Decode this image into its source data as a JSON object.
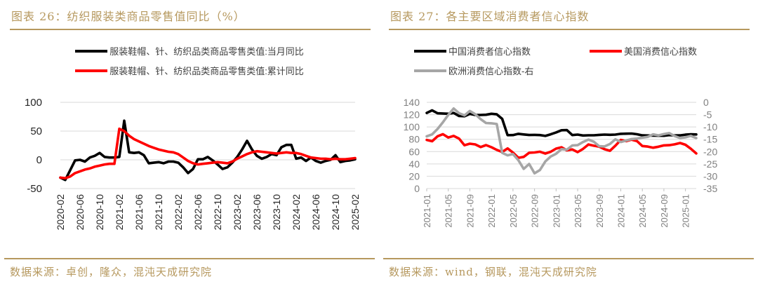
{
  "colors": {
    "accent_gold": "#B6985E",
    "grid": "#D9D9D9",
    "tick": "#BFBFBF",
    "axis_label_dark": "#262626",
    "axis_label_gray": "#808080",
    "legend_text": "#404040",
    "line_black": "#000000",
    "line_red": "#FF0000",
    "line_gray": "#A6A6A6"
  },
  "chart_data": [
    {
      "type": "line",
      "title": "图表 26：纺织服装类商品零售值同比（%）",
      "source": "数据来源：卓创，隆众，混沌天成研究院",
      "legend_position": "top",
      "grid": true,
      "ylim": [
        -50,
        100
      ],
      "yticks": [
        100,
        50,
        0,
        -50
      ],
      "x_tick_labels": [
        "2020-02",
        "2020-06",
        "2020-10",
        "2021-02",
        "2021-06",
        "2021-10",
        "2022-02",
        "2022-06",
        "2022-10",
        "2023-02",
        "2023-06",
        "2023-10",
        "2024-02",
        "2024-06",
        "2024-10",
        "2025-02"
      ],
      "x": [
        "2020-02",
        "2020-03",
        "2020-04",
        "2020-05",
        "2020-06",
        "2020-07",
        "2020-08",
        "2020-09",
        "2020-10",
        "2020-11",
        "2020-12",
        "2021-01",
        "2021-02",
        "2021-03",
        "2021-04",
        "2021-05",
        "2021-06",
        "2021-07",
        "2021-08",
        "2021-09",
        "2021-10",
        "2021-11",
        "2021-12",
        "2022-01",
        "2022-02",
        "2022-03",
        "2022-04",
        "2022-05",
        "2022-06",
        "2022-07",
        "2022-08",
        "2022-09",
        "2022-10",
        "2022-11",
        "2022-12",
        "2023-01",
        "2023-02",
        "2023-03",
        "2023-04",
        "2023-05",
        "2023-06",
        "2023-07",
        "2023-08",
        "2023-09",
        "2023-10",
        "2023-11",
        "2023-12",
        "2024-01",
        "2024-02",
        "2024-03",
        "2024-04",
        "2024-05",
        "2024-06",
        "2024-07",
        "2024-08",
        "2024-09",
        "2024-10",
        "2024-11",
        "2024-12",
        "2025-01",
        "2025-02"
      ],
      "series": [
        {
          "name": "服装鞋帽、针、纺织品类商品零售类值:当月同比",
          "color": "#000000",
          "axis": "left",
          "values": [
            -31,
            -35,
            -18,
            -1,
            0,
            -3,
            4,
            7,
            12,
            5,
            4,
            4,
            5,
            68,
            13,
            12,
            13,
            8,
            -6,
            -5,
            -4,
            -6,
            -3,
            -3,
            -5,
            -13,
            -23,
            -16,
            1,
            1,
            5,
            -1,
            -8,
            -16,
            -13,
            -5,
            5,
            18,
            33,
            18,
            7,
            2,
            5,
            10,
            8,
            22,
            26,
            26,
            2,
            4,
            -2,
            4,
            -2,
            -5,
            -2,
            0,
            8,
            -4,
            -2,
            -1,
            1
          ]
        },
        {
          "name": "服装鞋帽、针、纺织品类商品零售类值:累计同比",
          "color": "#FF0000",
          "axis": "left",
          "values": [
            -31,
            -32,
            -29,
            -23,
            -20,
            -17,
            -15,
            -12,
            -10,
            -8,
            -7,
            -7,
            54,
            50,
            42,
            36,
            32,
            28,
            24,
            21,
            18,
            16,
            14,
            13,
            10,
            4,
            -2,
            -6,
            -8,
            -7,
            -6,
            -5,
            -4,
            -5,
            -6,
            -3,
            2,
            6,
            10,
            13,
            15,
            14,
            13,
            12,
            11,
            12,
            13,
            12,
            12,
            10,
            7,
            4,
            3,
            2,
            2,
            1,
            2,
            1,
            1,
            2,
            3
          ]
        }
      ]
    },
    {
      "type": "line",
      "title": "图表 27：各主要区域消费者信心指数",
      "source": "数据来源：wind，钢联，混沌天成研究院",
      "legend_position": "top",
      "grid": true,
      "ylim_left": [
        0,
        140
      ],
      "yticks_left": [
        140,
        120,
        100,
        80,
        60,
        40,
        20,
        0
      ],
      "ylim_right": [
        -35,
        0
      ],
      "yticks_right": [
        0,
        -5,
        -10,
        -15,
        -20,
        -25,
        -30,
        -35
      ],
      "x_tick_labels": [
        "2021-01",
        "2021-05",
        "2021-09",
        "2022-01",
        "2022-05",
        "2022-09",
        "2023-01",
        "2023-05",
        "2023-09",
        "2024-01",
        "2024-05",
        "2024-09",
        "2025-01"
      ],
      "x": [
        "2021-01",
        "2021-02",
        "2021-03",
        "2021-04",
        "2021-05",
        "2021-06",
        "2021-07",
        "2021-08",
        "2021-09",
        "2021-10",
        "2021-11",
        "2021-12",
        "2022-01",
        "2022-02",
        "2022-03",
        "2022-04",
        "2022-05",
        "2022-06",
        "2022-07",
        "2022-08",
        "2022-09",
        "2022-10",
        "2022-11",
        "2022-12",
        "2023-01",
        "2023-02",
        "2023-03",
        "2023-04",
        "2023-05",
        "2023-06",
        "2023-07",
        "2023-08",
        "2023-09",
        "2023-10",
        "2023-11",
        "2023-12",
        "2024-01",
        "2024-02",
        "2024-03",
        "2024-04",
        "2024-05",
        "2024-06",
        "2024-07",
        "2024-08",
        "2024-09",
        "2024-10",
        "2024-11",
        "2024-12",
        "2025-01",
        "2025-02",
        "2025-03"
      ],
      "series": [
        {
          "name": "中国消费者信心指数",
          "color": "#000000",
          "axis": "left",
          "values": [
            122.8,
            127,
            122.2,
            121.9,
            121.5,
            122.8,
            117.8,
            117.5,
            121.2,
            119.5,
            119.5,
            119.8,
            121.5,
            120.5,
            113.2,
            86.7,
            86.8,
            88.9,
            87.9,
            87,
            87.2,
            86.9,
            85.5,
            88.1,
            91.2,
            94.7,
            94.9,
            86.9,
            87.6,
            86.2,
            86.5,
            86.5,
            87.2,
            87.6,
            87.3,
            87.6,
            88.9,
            89.1,
            89.4,
            88.2,
            86.4,
            86.2,
            86,
            85.8,
            85.7,
            86.9,
            86.3,
            86.4,
            87.5,
            88.1,
            87.9
          ]
        },
        {
          "name": "美国消费信心指数",
          "color": "#FF0000",
          "axis": "left",
          "values": [
            79,
            76.8,
            84.9,
            88.3,
            82.9,
            85.5,
            81.2,
            70.3,
            72.8,
            71.7,
            67.4,
            70.6,
            67.2,
            62.8,
            59.4,
            65.2,
            58.4,
            50,
            51.5,
            58.2,
            58.6,
            59.9,
            56.8,
            59.7,
            64.9,
            67,
            62,
            63.5,
            59.2,
            64.4,
            71.6,
            69.5,
            68.1,
            63.8,
            61.3,
            69.7,
            79,
            76.9,
            79.4,
            77.2,
            69.1,
            68.2,
            66.4,
            67.9,
            70.1,
            70.5,
            71.8,
            74,
            71.1,
            64.7,
            57
          ]
        },
        {
          "name": "欧洲消费信心指数-右",
          "color": "#A6A6A6",
          "axis": "right",
          "values": [
            -13.8,
            -13,
            -10.8,
            -8.1,
            -5.1,
            -2.5,
            -4.4,
            -5.3,
            -3.5,
            -4.8,
            -6.8,
            -8.4,
            -8.5,
            -8.8,
            -20.5,
            -21.5,
            -21,
            -23.5,
            -27,
            -25,
            -28.8,
            -27.5,
            -24,
            -22,
            -20.9,
            -19,
            -19.2,
            -17.5,
            -17.4,
            -16.1,
            -15.1,
            -16,
            -17.8,
            -17.9,
            -16.9,
            -15,
            -16.1,
            -15.5,
            -14.9,
            -14.7,
            -14.3,
            -14,
            -13,
            -13.4,
            -12.9,
            -12.5,
            -13.7,
            -14.5,
            -14.2,
            -13.6,
            -14.5
          ]
        }
      ]
    }
  ]
}
